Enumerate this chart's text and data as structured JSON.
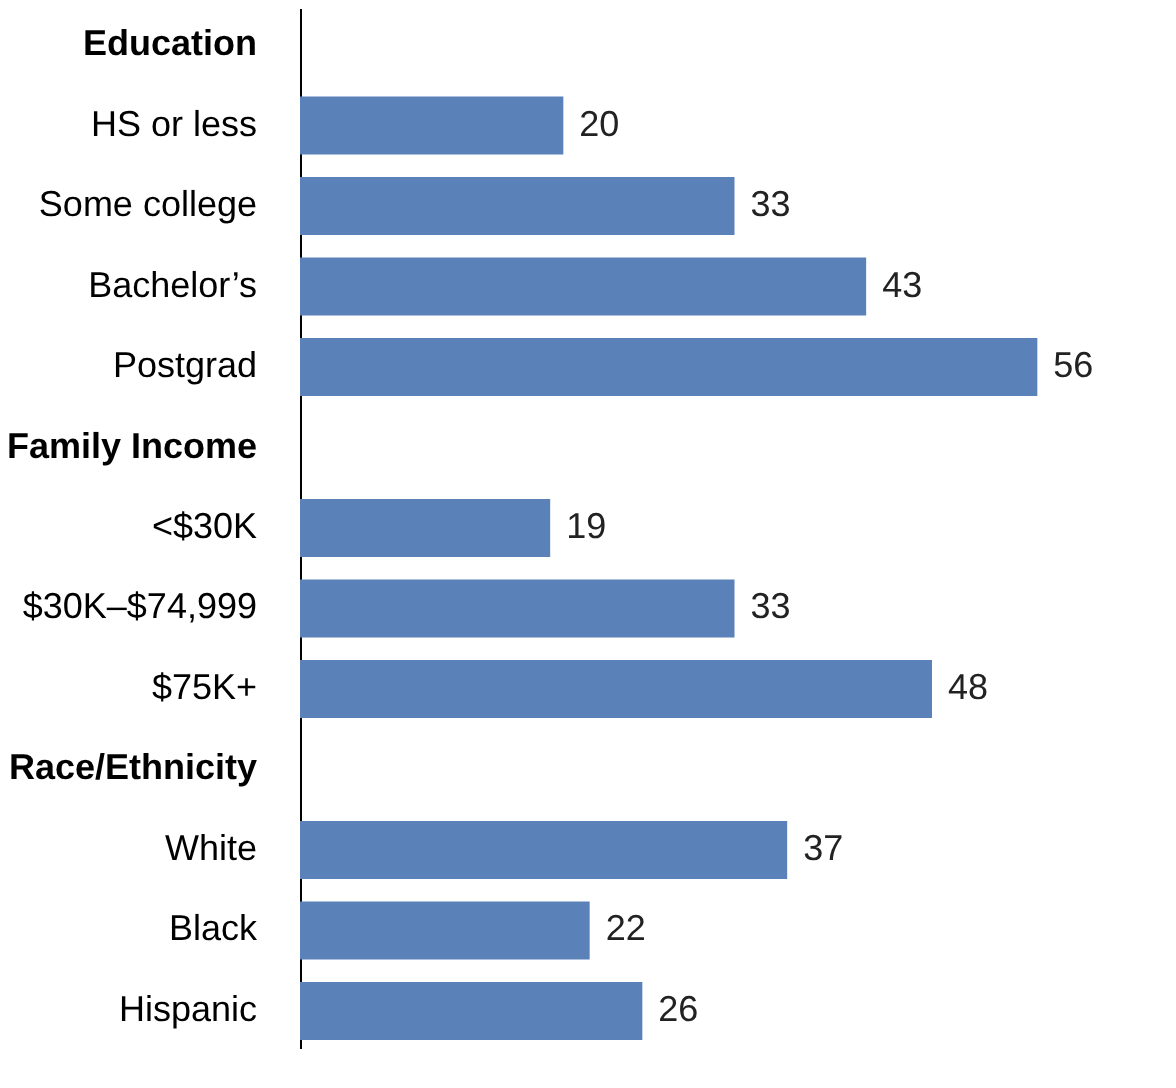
{
  "chart_data": {
    "type": "bar",
    "orientation": "horizontal",
    "categories": [
      "Education",
      "HS or less",
      "Some college",
      "Bachelor’s",
      "Postgrad",
      "Family Income",
      "<$30K",
      "$30K–$74,999",
      "$75K+",
      "Race/Ethnicity",
      "White",
      "Black",
      "Hispanic"
    ],
    "values": [
      null,
      20,
      33,
      43,
      56,
      null,
      19,
      33,
      48,
      null,
      37,
      22,
      26
    ],
    "color": "#5b82b8",
    "data_labels": true,
    "tick_labels": "y",
    "grid": false
  }
}
